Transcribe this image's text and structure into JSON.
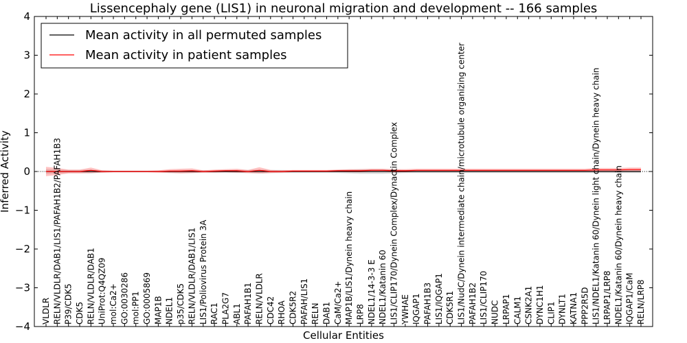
{
  "chart_data": {
    "type": "line",
    "title": "Lissencephaly gene (LIS1) in neuronal migration and development -- 166 samples",
    "xlabel": "Cellular Entities",
    "ylabel": "Inferred Activity",
    "ylim": [
      -4,
      4
    ],
    "yticks": [
      "−4",
      "−3",
      "−2",
      "−1",
      "0",
      "1",
      "2",
      "3",
      "4"
    ],
    "grid": false,
    "legend": {
      "placement": "top-left",
      "entries": [
        {
          "name": "Mean activity in all permuted samples",
          "color": "#000000"
        },
        {
          "name": "Mean activity in patient samples",
          "color": "#ff0000"
        }
      ]
    },
    "categories": [
      "VLDLR",
      "RELN/VLDLR/DAB1/LIS1/PAFAH1B2/PAFAH1B3",
      "P39/CDK5",
      "CDK5",
      "RELN/VLDLR/DAB1",
      "UniProt:Q4QZ09",
      "mol:Ca2+",
      "GO:0030286",
      "mol:PP1",
      "GO:0005869",
      "MAP1B",
      "NDEL1",
      "p35/CDK5",
      "RELN/VLDLR/DAB1/LIS1",
      "LIS1/Poliovirus Protein 3A",
      "RAC1",
      "PLA2G7",
      "ABL1",
      "PAFAH1B1",
      "RELN/VLDLR",
      "CDC42",
      "RHOA",
      "CDK5R2",
      "PAFAH/LIS1",
      "RELN",
      "DAB1",
      "CaM/Ca2+",
      "MAP1B/LIS1/Dynein heavy chain",
      "LRP8",
      "NDEL1/14-3-3 E",
      "NDEL1/Katanin 60",
      "LIS1/CLIP170/Dynein Complex/Dynactin Complex",
      "YWHAE",
      "IQGAP1",
      "PAFAH1B3",
      "LIS1/IQGAP1",
      "CDK5R1",
      "LIS1/NudC/Dynein intermediate chain/microtubule organizing center",
      "PAFAH1B2",
      "LIS1/CLIP170",
      "NUDC",
      "LRPAP1",
      "CALM1",
      "CSNK2A1",
      "DYNC1H1",
      "CLIP1",
      "DYNLT1",
      "KATNA1",
      "PPP2R5D",
      "LIS1/NDEL1/Katanin 60/Dynein light chain/Dynein heavy chain",
      "LRPAP1/LRP8",
      "NDEL1/Katanin 60/Dynein heavy chain",
      "IQGAP1/CaM",
      "RELN/LRP8"
    ],
    "series": [
      {
        "name": "Mean activity in all permuted samples",
        "color": "#000000",
        "values": [
          0,
          0,
          0,
          0,
          0,
          0,
          0,
          0,
          0,
          0,
          0,
          0,
          0,
          0,
          0,
          0,
          0,
          0,
          0,
          0,
          0,
          0,
          0,
          0,
          0,
          0,
          0,
          0,
          0,
          0,
          0,
          0,
          0,
          0,
          0,
          0,
          0,
          0,
          0,
          0,
          0,
          0,
          0,
          0,
          0,
          0,
          0,
          0,
          0,
          0,
          0,
          0,
          0,
          0
        ],
        "band": [
          0.06,
          0.05,
          0.04,
          0.04,
          0.05,
          0.03,
          0.02,
          0.02,
          0.02,
          0.02,
          0.02,
          0.03,
          0.04,
          0.04,
          0.03,
          0.03,
          0.03,
          0.04,
          0.04,
          0.05,
          0.04,
          0.04,
          0.03,
          0.03,
          0.03,
          0.03,
          0.04,
          0.05,
          0.06,
          0.06,
          0.06,
          0.05,
          0.04,
          0.04,
          0.04,
          0.04,
          0.04,
          0.04,
          0.04,
          0.04,
          0.04,
          0.04,
          0.04,
          0.04,
          0.04,
          0.04,
          0.04,
          0.04,
          0.04,
          0.04,
          0.04,
          0.04,
          0.04,
          0.04
        ]
      },
      {
        "name": "Mean activity in patient samples",
        "color": "#ff0000",
        "values": [
          0.0,
          0.0,
          0.0,
          0.0,
          0.03,
          0.0,
          0.0,
          0.0,
          0.0,
          0.0,
          0.0,
          0.01,
          0.01,
          0.02,
          0.0,
          0.01,
          0.02,
          0.02,
          0.0,
          0.03,
          0.0,
          0.0,
          0.01,
          0.01,
          0.01,
          0.01,
          0.02,
          0.02,
          0.02,
          0.03,
          0.03,
          0.02,
          0.02,
          0.03,
          0.03,
          0.03,
          0.03,
          0.03,
          0.03,
          0.03,
          0.03,
          0.03,
          0.03,
          0.03,
          0.03,
          0.03,
          0.03,
          0.03,
          0.03,
          0.04,
          0.04,
          0.04,
          0.05,
          0.05
        ],
        "band": [
          0.12,
          0.09,
          0.05,
          0.05,
          0.07,
          0.03,
          0.02,
          0.02,
          0.02,
          0.02,
          0.03,
          0.05,
          0.06,
          0.06,
          0.03,
          0.04,
          0.04,
          0.05,
          0.04,
          0.08,
          0.04,
          0.03,
          0.03,
          0.03,
          0.03,
          0.03,
          0.03,
          0.04,
          0.04,
          0.04,
          0.04,
          0.04,
          0.04,
          0.04,
          0.04,
          0.04,
          0.04,
          0.04,
          0.04,
          0.04,
          0.04,
          0.04,
          0.04,
          0.04,
          0.04,
          0.04,
          0.04,
          0.04,
          0.04,
          0.05,
          0.05,
          0.05,
          0.05,
          0.05
        ]
      }
    ]
  }
}
